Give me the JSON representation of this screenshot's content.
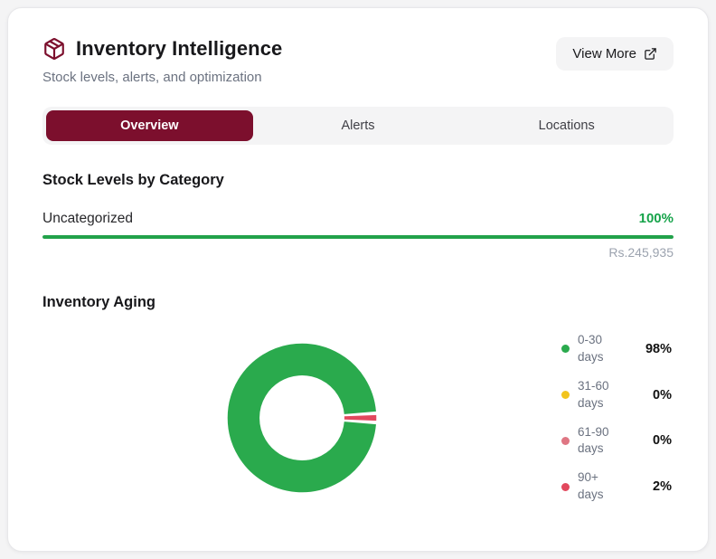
{
  "colors": {
    "accent": "#7c0f2d",
    "green": "#2aaa4d",
    "bar_green": "#22a24a",
    "percent_green": "#16a34a"
  },
  "header": {
    "title": "Inventory Intelligence",
    "subtitle": "Stock levels, alerts, and optimization",
    "view_more_label": "View More"
  },
  "tabs": [
    {
      "label": "Overview",
      "active": true
    },
    {
      "label": "Alerts",
      "active": false
    },
    {
      "label": "Locations",
      "active": false
    }
  ],
  "stock": {
    "heading": "Stock Levels by Category",
    "rows": [
      {
        "label": "Uncategorized",
        "percent": "100%",
        "percent_num": 100,
        "value": "Rs.245,935"
      }
    ]
  },
  "aging": {
    "heading": "Inventory Aging"
  },
  "chart_data": {
    "type": "pie",
    "donut": true,
    "title": "Inventory Aging",
    "categories": [
      "0-30 days",
      "31-60 days",
      "61-90 days",
      "90+ days"
    ],
    "values": [
      98,
      0,
      0,
      2
    ],
    "colors": [
      "#2aaa4d",
      "#f2c41d",
      "#df7683",
      "#e2485d"
    ],
    "legend_position": "right",
    "legend": [
      {
        "range": "0-30",
        "unit": "days",
        "percent": "98%",
        "color": "#2aaa4d"
      },
      {
        "range": "31-60",
        "unit": "days",
        "percent": "0%",
        "color": "#f2c41d"
      },
      {
        "range": "61-90",
        "unit": "days",
        "percent": "0%",
        "color": "#df7683"
      },
      {
        "range": "90+",
        "unit": "days",
        "percent": "2%",
        "color": "#e2485d"
      }
    ]
  }
}
